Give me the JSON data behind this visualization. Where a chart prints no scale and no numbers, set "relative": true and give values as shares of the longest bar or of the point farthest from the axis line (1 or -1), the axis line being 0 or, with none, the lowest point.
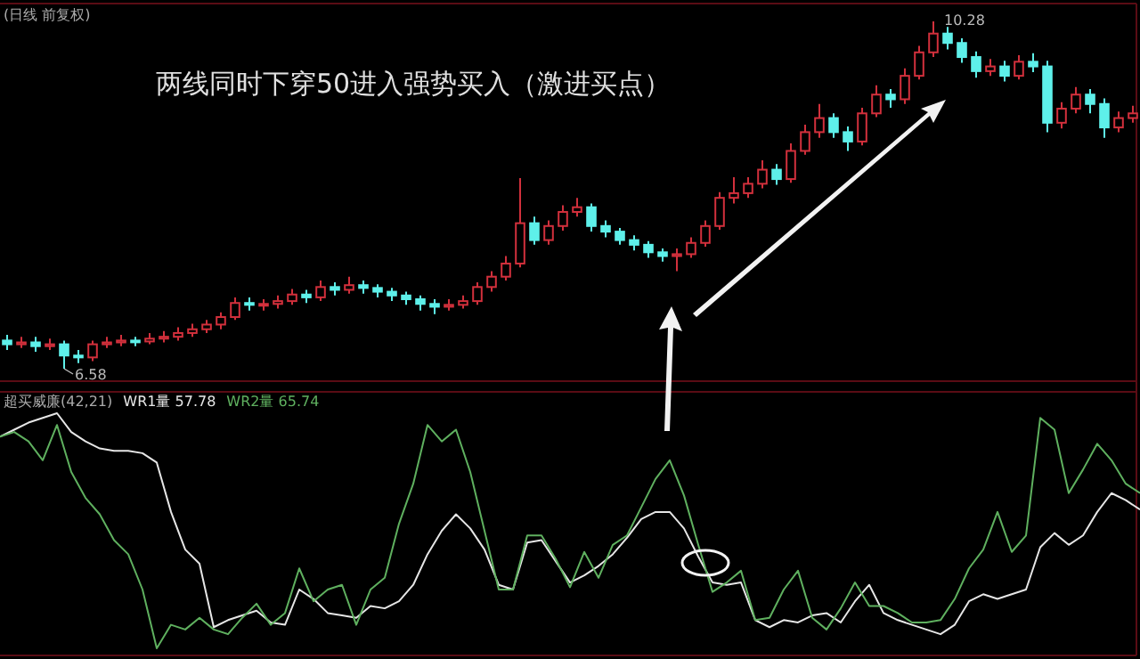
{
  "chart_data": [
    {
      "type": "candlestick",
      "title": "(日线 前复权)",
      "annotations": [
        "两线同时下穿50进入强势买入（激进买点）",
        {
          "text": "6.58",
          "y": 6.58
        },
        "10.28"
      ],
      "categories": [
        null,
        null,
        null,
        null,
        null,
        null,
        null,
        null,
        null,
        null,
        null,
        null,
        null,
        null,
        null,
        null,
        null,
        null,
        null,
        null,
        null,
        null,
        null,
        null,
        null,
        null,
        null,
        null,
        null,
        null,
        null,
        null,
        null,
        null,
        null,
        null,
        null,
        null,
        null,
        null,
        null,
        null,
        null,
        null,
        null,
        null,
        null,
        null,
        null,
        null,
        null,
        null,
        null,
        null,
        null,
        null,
        null,
        null,
        null,
        null,
        null,
        null,
        null,
        null,
        null,
        null,
        null,
        null,
        null,
        null,
        null,
        null,
        null,
        null,
        null,
        null,
        null,
        null,
        null,
        null
      ],
      "ohlc": [
        [
          6.88,
          6.94,
          6.78,
          6.84
        ],
        [
          6.84,
          6.92,
          6.8,
          6.86
        ],
        [
          6.86,
          6.92,
          6.76,
          6.82
        ],
        [
          6.82,
          6.9,
          6.78,
          6.84
        ],
        [
          6.84,
          6.88,
          6.58,
          6.72
        ],
        [
          6.72,
          6.78,
          6.64,
          6.7
        ],
        [
          6.7,
          6.88,
          6.66,
          6.84
        ],
        [
          6.84,
          6.92,
          6.8,
          6.86
        ],
        [
          6.86,
          6.94,
          6.82,
          6.88
        ],
        [
          6.88,
          6.92,
          6.82,
          6.87
        ],
        [
          6.87,
          6.96,
          6.84,
          6.9
        ],
        [
          6.9,
          6.98,
          6.86,
          6.92
        ],
        [
          6.92,
          7.02,
          6.88,
          6.96
        ],
        [
          6.96,
          7.06,
          6.92,
          7.0
        ],
        [
          7.0,
          7.1,
          6.96,
          7.05
        ],
        [
          7.05,
          7.18,
          7.0,
          7.13
        ],
        [
          7.13,
          7.34,
          7.1,
          7.28
        ],
        [
          7.28,
          7.34,
          7.2,
          7.26
        ],
        [
          7.26,
          7.32,
          7.2,
          7.27
        ],
        [
          7.27,
          7.36,
          7.22,
          7.3
        ],
        [
          7.3,
          7.43,
          7.26,
          7.37
        ],
        [
          7.37,
          7.42,
          7.28,
          7.34
        ],
        [
          7.34,
          7.52,
          7.3,
          7.45
        ],
        [
          7.45,
          7.5,
          7.36,
          7.42
        ],
        [
          7.42,
          7.56,
          7.38,
          7.47
        ],
        [
          7.47,
          7.52,
          7.38,
          7.44
        ],
        [
          7.44,
          7.48,
          7.34,
          7.4
        ],
        [
          7.4,
          7.44,
          7.3,
          7.36
        ],
        [
          7.36,
          7.4,
          7.26,
          7.32
        ],
        [
          7.32,
          7.36,
          7.2,
          7.27
        ],
        [
          7.27,
          7.32,
          7.16,
          7.24
        ],
        [
          7.24,
          7.32,
          7.2,
          7.26
        ],
        [
          7.26,
          7.36,
          7.22,
          7.3
        ],
        [
          7.3,
          7.5,
          7.26,
          7.45
        ],
        [
          7.45,
          7.62,
          7.4,
          7.56
        ],
        [
          7.56,
          7.78,
          7.52,
          7.7
        ],
        [
          7.7,
          8.61,
          7.66,
          8.13
        ],
        [
          8.13,
          8.2,
          7.9,
          7.95
        ],
        [
          7.95,
          8.16,
          7.9,
          8.1
        ],
        [
          8.1,
          8.32,
          8.05,
          8.25
        ],
        [
          8.25,
          8.4,
          8.2,
          8.3
        ],
        [
          8.3,
          8.34,
          8.04,
          8.1
        ],
        [
          8.1,
          8.16,
          7.98,
          8.04
        ],
        [
          8.04,
          8.08,
          7.9,
          7.95
        ],
        [
          7.95,
          8.0,
          7.84,
          7.9
        ],
        [
          7.9,
          7.94,
          7.76,
          7.82
        ],
        [
          7.82,
          7.86,
          7.72,
          7.78
        ],
        [
          7.78,
          7.86,
          7.62,
          7.8
        ],
        [
          7.8,
          7.98,
          7.76,
          7.92
        ],
        [
          7.92,
          8.16,
          7.88,
          8.1
        ],
        [
          8.1,
          8.46,
          8.06,
          8.4
        ],
        [
          8.4,
          8.62,
          8.34,
          8.45
        ],
        [
          8.45,
          8.62,
          8.4,
          8.55
        ],
        [
          8.55,
          8.8,
          8.5,
          8.7
        ],
        [
          8.7,
          8.76,
          8.54,
          8.6
        ],
        [
          8.6,
          8.98,
          8.56,
          8.9
        ],
        [
          8.9,
          9.18,
          8.86,
          9.1
        ],
        [
          9.1,
          9.4,
          9.04,
          9.25
        ],
        [
          9.25,
          9.3,
          9.04,
          9.1
        ],
        [
          9.1,
          9.16,
          8.9,
          9.0
        ],
        [
          9.0,
          9.36,
          8.96,
          9.3
        ],
        [
          9.3,
          9.6,
          9.26,
          9.5
        ],
        [
          9.5,
          9.56,
          9.36,
          9.45
        ],
        [
          9.45,
          9.78,
          9.4,
          9.7
        ],
        [
          9.7,
          10.02,
          9.66,
          9.95
        ],
        [
          9.95,
          10.28,
          9.9,
          10.15
        ],
        [
          10.15,
          10.22,
          9.98,
          10.05
        ],
        [
          10.05,
          10.1,
          9.84,
          9.9
        ],
        [
          9.9,
          9.96,
          9.68,
          9.75
        ],
        [
          9.75,
          9.88,
          9.7,
          9.8
        ],
        [
          9.8,
          9.86,
          9.64,
          9.7
        ],
        [
          9.7,
          9.92,
          9.66,
          9.85
        ],
        [
          9.85,
          9.94,
          9.74,
          9.8
        ],
        [
          9.8,
          9.86,
          9.1,
          9.2
        ],
        [
          9.2,
          9.42,
          9.14,
          9.35
        ],
        [
          9.35,
          9.58,
          9.3,
          9.5
        ],
        [
          9.5,
          9.56,
          9.3,
          9.4
        ],
        [
          9.4,
          9.46,
          9.04,
          9.15
        ],
        [
          9.15,
          9.32,
          9.1,
          9.25
        ],
        [
          9.25,
          9.38,
          9.2,
          9.3
        ]
      ]
    },
    {
      "type": "line",
      "title": "超买威廉(42,21)",
      "relative": true,
      "categories": [
        null,
        null,
        null,
        null,
        null,
        null,
        null,
        null,
        null,
        null,
        null,
        null,
        null,
        null,
        null,
        null,
        null,
        null,
        null,
        null,
        null,
        null,
        null,
        null,
        null,
        null,
        null,
        null,
        null,
        null,
        null,
        null,
        null,
        null,
        null,
        null,
        null,
        null,
        null,
        null,
        null,
        null,
        null,
        null,
        null,
        null,
        null,
        null,
        null,
        null,
        null,
        null,
        null,
        null,
        null,
        null,
        null,
        null,
        null,
        null,
        null,
        null,
        null,
        null,
        null,
        null,
        null,
        null,
        null,
        null,
        null,
        null,
        null,
        null,
        null,
        null,
        null,
        null,
        null,
        null,
        null
      ],
      "series": [
        {
          "name": "WR1量 57.78",
          "color": "#e6e6e6",
          "values": [
            0.9,
            0.93,
            0.96,
            0.98,
            1.0,
            0.92,
            0.88,
            0.85,
            0.84,
            0.84,
            0.83,
            0.79,
            0.58,
            0.42,
            0.36,
            0.09,
            0.12,
            0.14,
            0.16,
            0.11,
            0.1,
            0.25,
            0.21,
            0.15,
            0.14,
            0.13,
            0.18,
            0.17,
            0.2,
            0.27,
            0.4,
            0.5,
            0.57,
            0.51,
            0.42,
            0.27,
            0.25,
            0.45,
            0.46,
            0.37,
            0.28,
            0.31,
            0.35,
            0.4,
            0.47,
            0.55,
            0.58,
            0.58,
            0.51,
            0.39,
            0.28,
            0.27,
            0.28,
            0.12,
            0.09,
            0.12,
            0.11,
            0.14,
            0.15,
            0.11,
            0.2,
            0.27,
            0.15,
            0.12,
            0.1,
            0.08,
            0.06,
            0.1,
            0.2,
            0.23,
            0.21,
            0.23,
            0.25,
            0.43,
            0.49,
            0.44,
            0.48,
            0.58,
            0.66,
            0.63,
            0.59
          ]
        },
        {
          "name": "WR2量 65.74",
          "color": "#5fb05f",
          "values": [
            0.9,
            0.92,
            0.88,
            0.8,
            0.95,
            0.75,
            0.64,
            0.57,
            0.46,
            0.4,
            0.25,
            0.0,
            0.1,
            0.08,
            0.13,
            0.08,
            0.06,
            0.13,
            0.19,
            0.1,
            0.15,
            0.34,
            0.2,
            0.25,
            0.27,
            0.1,
            0.25,
            0.3,
            0.53,
            0.7,
            0.95,
            0.88,
            0.93,
            0.75,
            0.5,
            0.25,
            0.25,
            0.48,
            0.48,
            0.38,
            0.26,
            0.41,
            0.3,
            0.44,
            0.48,
            0.6,
            0.72,
            0.8,
            0.65,
            0.44,
            0.24,
            0.28,
            0.33,
            0.12,
            0.13,
            0.25,
            0.33,
            0.13,
            0.08,
            0.17,
            0.28,
            0.18,
            0.18,
            0.15,
            0.11,
            0.11,
            0.12,
            0.21,
            0.34,
            0.42,
            0.58,
            0.41,
            0.48,
            0.98,
            0.93,
            0.66,
            0.76,
            0.87,
            0.8,
            0.7,
            0.66
          ]
        }
      ]
    }
  ]
}
